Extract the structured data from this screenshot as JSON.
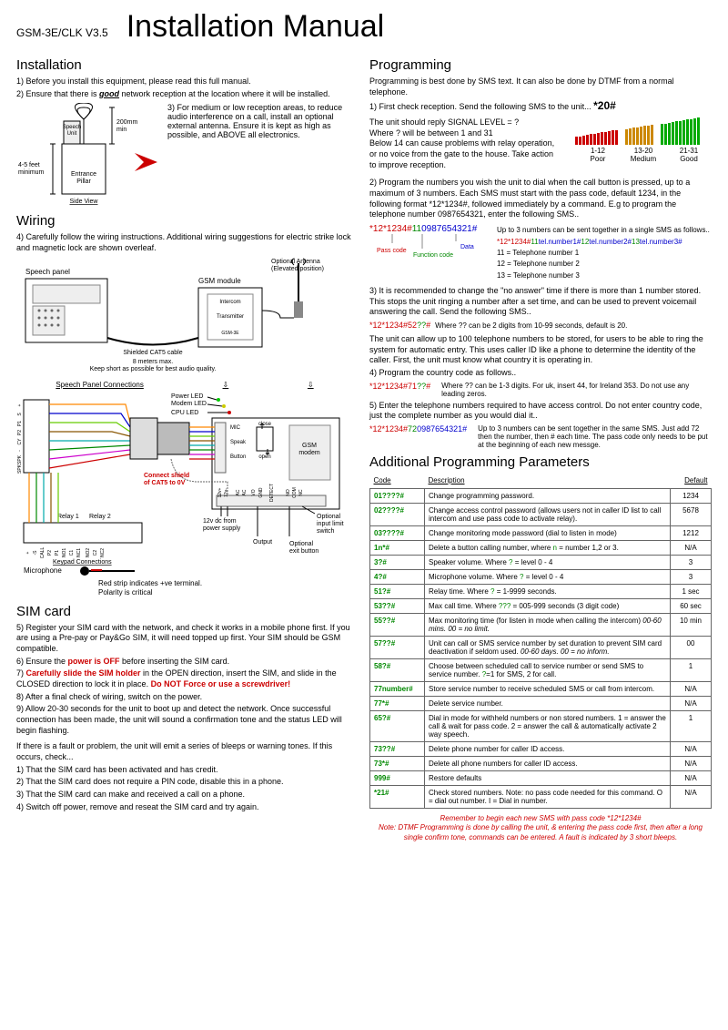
{
  "header": {
    "model": "GSM-3E/CLK V3.5",
    "title": "Installation Manual"
  },
  "install": {
    "heading": "Installation",
    "l1": "1) Before you install this equipment, please read this full manual.",
    "l2a": "2) Ensure that there is ",
    "l2b": "good",
    "l2c": " network reception at the location where it will be installed.",
    "diag_text": "3) For medium or low reception areas, to reduce audio interference on a call, install an optional external antenna. Ensure it is kept as high as possible, and ABOVE all electronics.",
    "speech_unit": "Speech\nUnit",
    "entrance": "Entrance\nPillar",
    "side_view": "Side View",
    "h200": "200mm\nmin",
    "h45": "4-5 feet\nminimum"
  },
  "wiring": {
    "heading": "Wiring",
    "l1": "4) Carefully follow the wiring instructions. Additional wiring suggestions for electric strike lock and magnetic lock are shown overleaf.",
    "speech_panel": "Speech panel",
    "opt_antenna": "Optional Antenna\n(Elevated position)",
    "gsm_module": "GSM module",
    "intercom": "Intercom",
    "transmitter": "Transmitter",
    "gsm3e": "GSM-3E",
    "cat5": "Shielded CAT5 cable",
    "cat5_2": "8 meters max.\nKeep short as possible for best audio quality.",
    "spc": "Speech Panel Connections",
    "power_led": "Power LED",
    "modem_led": "Modem LED",
    "cpu_led": "CPU LED",
    "gsm_modem": "GSM\nmodem",
    "connect_shield": "Connect shield\nof CAT5 to 0V",
    "relay1": "Relay 1",
    "relay2": "Relay 2",
    "v12": "12v dc from\npower supply",
    "opt_input": "Optional\ninput limit\nswitch",
    "opt_exit": "Optional\nexit button",
    "output": "Output",
    "keypad": "Keypad Connections",
    "mic_label": "Microphone",
    "red_strip": "Red strip indicates +ve terminal.\nPolarity is critical",
    "mic": "MIC",
    "speak": "Speak",
    "button": "Button",
    "close": "close",
    "open": "open"
  },
  "sim": {
    "heading": "SIM card",
    "l5": "5) Register your SIM card with the network, and check it works in a mobile phone first. If you are using a Pre-pay or Pay&Go SIM, it will need topped up first. Your SIM should be GSM compatible.",
    "l6a": "6) Ensure the ",
    "l6b": "power is OFF",
    "l6c": " before inserting the SIM card.",
    "l7a": "7) ",
    "l7b": "Carefully slide the SIM holder",
    "l7c": " in the OPEN direction, insert the SIM, and slide in the CLOSED direction to lock it in place. ",
    "l7d": "Do NOT Force or use a screwdriver!",
    "l8": "8) After a final check of wiring, switch on the power.",
    "l9": "9) Allow 20-30 seconds for the unit to boot up and detect the network. Once successful connection has been made, the unit will sound a confirmation tone and the status LED will begin flashing.",
    "fault": " If there is a fault or problem, the unit will emit a series of bleeps or warning tones. If this occurs, check...",
    "f1": "1) That the SIM card has been activated and has credit.",
    "f2": "2) That the SIM card does not require a PIN code, disable this in a phone.",
    "f3": "3) That the SIM card can make and received a call on a phone.",
    "f4": "4) Switch off power, remove and reseat the SIM card and try again."
  },
  "prog": {
    "heading": "Programming",
    "intro": "Programming is best done by SMS text. It can also be done by DTMF from a normal telephone.",
    "l1a": "1) First check reception. Send the following SMS to the unit... ",
    "l1b": "*20#",
    "sigtext": "The unit should reply SIGNAL LEVEL = ?\nWhere ? will be between 1 and 31\nBelow 14 can cause problems with relay operation, or no voice from the gate to the house. Take action to improve reception.",
    "sig1": "1-12",
    "sig1b": "Poor",
    "sig2": "13-20",
    "sig2b": "Medium",
    "sig3": "21-31",
    "sig3b": "Good",
    "l2": "2) Program the numbers you wish the unit to dial when the call button is pressed, up to a maximum of 3 numbers. Each SMS must start with the pass code, default 1234, in the following format *12*1234#, followed immediately by a command. E.g to program the telephone number 0987654321, enter the following SMS..",
    "sms1_pass": "*12*1234#",
    "sms1_func": "11",
    "sms1_data": "0987654321#",
    "note_lbl1": "Pass code",
    "note_lbl2": "Function code",
    "note_lbl3": "Data",
    "note2a": "Up to 3 numbers can be sent together in a single SMS as follows..",
    "note2b": "*12*1234#",
    "note2c": "11",
    "note2c2": "tel.number1#",
    "note2d": "12",
    "note2d2": "tel.number2#",
    "note2e": "13",
    "note2e2": "tel.number3#",
    "n11": "11 = Telephone number 1",
    "n12": "12 = Telephone number 2",
    "n13": "13 = Telephone number 3",
    "l3": "3) It is recommended to change the \"no answer\" time if there is more than 1 number stored. This stops the unit ringing a number after a set time, and can be used to prevent voicemail answering the call. Send the following SMS..",
    "sms3_code": "*12*1234#52",
    "sms3_q": "??",
    "sms3_h": "#",
    "sms3_note": "Where ?? can be 2 digits from 10-99 seconds, default is 20.",
    "l3b": "The unit can allow up to 100 telephone numbers to be stored, for users to be able to ring the system for automatic entry. This uses caller ID like a phone to determine the identity of the caller. First, the unit must know what country it is operating in.",
    "l4": "4) Program the country code as follows..",
    "sms4_code": "*12*1234#71",
    "sms4_q": "??",
    "sms4_h": "#",
    "sms4_note": "Where ?? can be 1-3 digits. For uk, insert 44, for Ireland 353. Do not use any leading zeros.",
    "l5": "5) Enter the telephone numbers required to have access control. Do not enter country code, just the complete number as you would dial it..",
    "sms5_code": "*12*1234#",
    "sms5_f": "72",
    "sms5_d": "0987654321#",
    "sms5_note": "Up to 3 numbers can be sent together in the same SMS. Just add 72 then the number, then # each time. The pass code only needs to be put at the beginning of each new messge."
  },
  "params": {
    "heading": "Additional Programming Parameters",
    "th_code": "Code",
    "th_desc": "Description",
    "th_def": "Default",
    "rows": [
      {
        "c": "01????#",
        "d": "Change programming password.",
        "v": "1234"
      },
      {
        "c": "02????#",
        "d": "Change access control password (allows users not in caller ID list to call intercom and use pass code to activate relay).",
        "v": "5678"
      },
      {
        "c": "03????#",
        "d": "Change monitoring mode password (dial to listen in mode)",
        "v": "1212"
      },
      {
        "c": "1n*#",
        "d": "Delete a button calling number, where n = number 1,2 or 3.",
        "v": "N/A"
      },
      {
        "c": "3?#",
        "d": "Speaker volume. Where ? = level 0 - 4",
        "v": "3"
      },
      {
        "c": "4?#",
        "d": "Microphone volume. Where ? = level 0 - 4",
        "v": "3"
      },
      {
        "c": "51?#",
        "d": "Relay time. Where ? = 1-9999 seconds.",
        "v": "1 sec"
      },
      {
        "c": "53??#",
        "d": "Max call time. Where ??? = 005-999 seconds (3 digit code)",
        "v": "60 sec"
      },
      {
        "c": "55??#",
        "d": "Max monitoring time (for listen in mode when calling the intercom) 00-60 mins. 00 = no limit.",
        "v": "10 min"
      },
      {
        "c": "57??#",
        "d": "Unit can call or SMS service number by set duration to prevent SIM card deactivation if seldom used. 00-60 days. 00 = no inform.",
        "v": "00"
      },
      {
        "c": "58?#",
        "d": "Choose between scheduled call to service number or send SMS to service number. ?=1 for SMS, 2 for call.",
        "v": "1"
      },
      {
        "c": "77number#",
        "d": "Store service number to receive scheduled SMS or call from intercom.",
        "v": "N/A"
      },
      {
        "c": "77*#",
        "d": "Delete service number.",
        "v": "N/A"
      },
      {
        "c": "65?#",
        "d": "Dial in mode for withheld numbers or non stored numbers. 1 = answer the call & wait for pass code. 2 = answer the call & automatically activate 2 way speech.",
        "v": "1"
      },
      {
        "c": "73??#",
        "d": "Delete phone number for caller ID access.",
        "v": "N/A"
      },
      {
        "c": "73*#",
        "d": "Delete all phone numbers for caller ID access.",
        "v": "N/A"
      },
      {
        "c": "999#",
        "d": "Restore defaults",
        "v": "N/A"
      },
      {
        "c": "*21#",
        "d": "Check stored numbers. Note: no pass code needed for this command. O = dial out number. I = Dial in number.",
        "v": "N/A"
      }
    ]
  },
  "footer": "Remember to begin each new SMS with pass code *12*1234#\nNote: DTMF Programming is done by calling the unit, & entering the pass code first, then after a long single confirm tone, commands can be entered. A fault is indicated by 3 short bleeps.",
  "colors": {
    "bar_poor": "#c00",
    "bar_med": "#c80",
    "bar_good": "#0a0"
  }
}
